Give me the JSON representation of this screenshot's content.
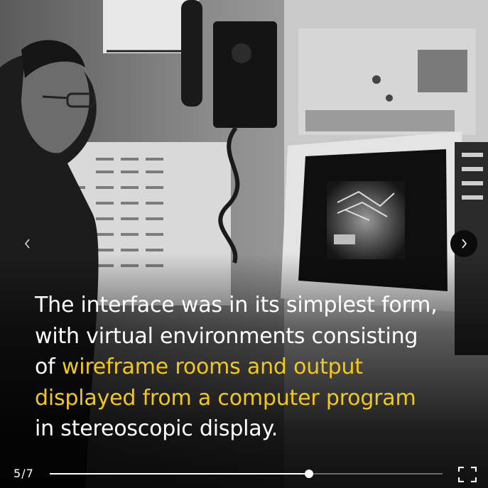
{
  "slideshow": {
    "counter": {
      "current": "5",
      "separator": "/",
      "total": "7"
    },
    "progress": 0.66,
    "caption": {
      "lines": [
        [
          {
            "text": "The interface was in its simplest form,",
            "highlight": false
          }
        ],
        [
          {
            "text": "with virtual environments consisting",
            "highlight": false
          }
        ],
        [
          {
            "text": "of ",
            "highlight": false
          },
          {
            "text": "wireframe rooms and output",
            "highlight": true
          }
        ],
        [
          {
            "text": "displayed from a computer program",
            "highlight": true
          }
        ],
        [
          {
            "text": "in stereoscopic display.",
            "highlight": false
          }
        ]
      ]
    },
    "colors": {
      "text": "#ffffff",
      "highlight": "#f2c81c",
      "track": "#6b6b6b",
      "fill": "#ffffff"
    },
    "icons": {
      "prev": "chevron-left-icon",
      "next": "chevron-right-icon",
      "fullscreen": "fullscreen-icon"
    }
  }
}
